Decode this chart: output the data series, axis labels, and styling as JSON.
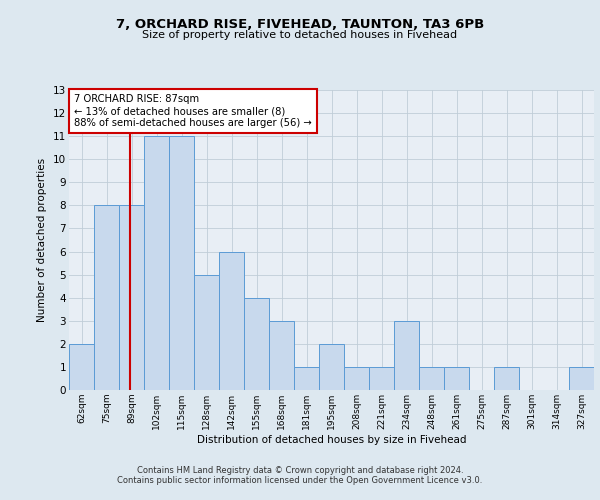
{
  "title1": "7, ORCHARD RISE, FIVEHEAD, TAUNTON, TA3 6PB",
  "title2": "Size of property relative to detached houses in Fivehead",
  "xlabel": "Distribution of detached houses by size in Fivehead",
  "ylabel": "Number of detached properties",
  "bar_labels": [
    "62sqm",
    "75sqm",
    "89sqm",
    "102sqm",
    "115sqm",
    "128sqm",
    "142sqm",
    "155sqm",
    "168sqm",
    "181sqm",
    "195sqm",
    "208sqm",
    "221sqm",
    "234sqm",
    "248sqm",
    "261sqm",
    "275sqm",
    "287sqm",
    "301sqm",
    "314sqm",
    "327sqm"
  ],
  "bar_values": [
    2,
    8,
    8,
    11,
    11,
    5,
    6,
    4,
    3,
    1,
    2,
    1,
    1,
    3,
    1,
    1,
    0,
    1,
    0,
    0,
    1
  ],
  "bar_color": "#c8d9ed",
  "bar_edge_color": "#5b9bd5",
  "annotation_title": "7 ORCHARD RISE: 87sqm",
  "annotation_line1": "← 13% of detached houses are smaller (8)",
  "annotation_line2": "88% of semi-detached houses are larger (56) →",
  "annotation_box_color": "#ffffff",
  "annotation_box_edge": "#cc0000",
  "vline_color": "#cc0000",
  "bg_color": "#dde8f0",
  "plot_bg": "#e8eef5",
  "footer1": "Contains HM Land Registry data © Crown copyright and database right 2024.",
  "footer2": "Contains public sector information licensed under the Open Government Licence v3.0.",
  "ylim": [
    0,
    13
  ],
  "yticks": [
    0,
    1,
    2,
    3,
    4,
    5,
    6,
    7,
    8,
    9,
    10,
    11,
    12,
    13
  ]
}
